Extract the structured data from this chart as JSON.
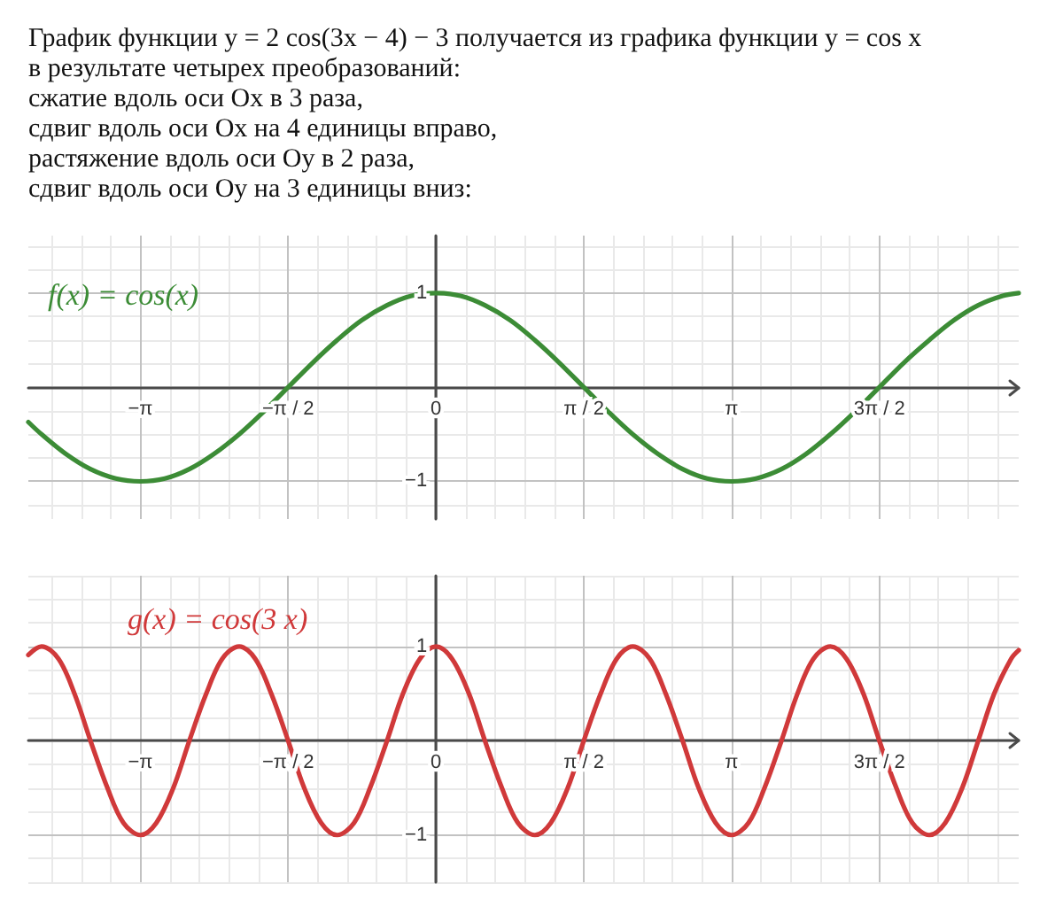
{
  "chart_data": [
    {
      "type": "line",
      "title": "График функции y = 2 cos(3x − 4) − 3 получается из графика функции y = cos x в результате четырех преобразований:",
      "annotations": [
        "сжатие вдоль оси Ox в 3 раза,",
        "сдвиг вдоль оси Ox на 4 единицы вправо,",
        "растяжение вдоль оси Oy в 2 раза,",
        "сдвиг вдоль оси Oy на 3 единицы вниз:"
      ],
      "xlim": [
        -4.33,
        6.19
      ],
      "xticks": [
        {
          "value": -3.14,
          "label": "−π"
        },
        {
          "value": -1.57,
          "label": "−π / 2"
        },
        0,
        {
          "value": 1.57,
          "label": "π / 2"
        },
        {
          "value": 3.14,
          "label": "π"
        },
        {
          "value": 4.71,
          "label": "3π / 2"
        }
      ],
      "ylim": [
        -1.4,
        1.61
      ],
      "yticks": [
        {
          "value": -1,
          "label": "−1"
        },
        1
      ],
      "grid": true,
      "legend": "top left",
      "marker": "none",
      "line_style": "solid",
      "series": [
        {
          "name": "f(x) = cos(x)",
          "color": "#3c8c36",
          "x": [
            -4.33,
            -4.19,
            -3.93,
            -3.67,
            -3.4,
            -3.14,
            -2.88,
            -2.62,
            -2.36,
            -2.09,
            -1.83,
            -1.57,
            -1.31,
            -1.05,
            -0.79,
            -0.52,
            -0.26,
            0,
            0.26,
            0.52,
            0.79,
            1.05,
            1.31,
            1.57,
            1.83,
            2.09,
            2.36,
            2.62,
            2.88,
            3.14,
            3.4,
            3.67,
            3.93,
            4.19,
            4.45,
            4.71,
            4.97,
            5.24,
            5.5,
            5.76,
            6.02,
            6.19
          ],
          "values": [
            -0.37,
            -0.5,
            -0.71,
            -0.87,
            -0.97,
            -1,
            -0.97,
            -0.87,
            -0.71,
            -0.5,
            -0.26,
            0,
            0.26,
            0.5,
            0.71,
            0.87,
            0.97,
            1,
            0.97,
            0.87,
            0.71,
            0.5,
            0.26,
            0,
            -0.26,
            -0.5,
            -0.71,
            -0.87,
            -0.97,
            -1,
            -0.97,
            -0.87,
            -0.71,
            -0.5,
            -0.26,
            0,
            0.26,
            0.5,
            0.71,
            0.87,
            0.97,
            1
          ]
        }
      ]
    },
    {
      "type": "line",
      "xlim": [
        -4.33,
        6.19
      ],
      "xticks": [
        {
          "value": -3.14,
          "label": "−π"
        },
        {
          "value": -1.57,
          "label": "−π / 2"
        },
        0,
        {
          "value": 1.57,
          "label": "π / 2"
        },
        {
          "value": 3.14,
          "label": "π"
        },
        {
          "value": 4.71,
          "label": "3π / 2"
        }
      ],
      "ylim": [
        -1.5,
        1.75
      ],
      "yticks": [
        {
          "value": -1,
          "label": "−1"
        },
        1
      ],
      "grid": true,
      "legend": "top left",
      "marker": "none",
      "line_style": "solid",
      "series": [
        {
          "name": "g(x) = cos(3 x)",
          "color": "#d0393a",
          "x": [
            -4.33,
            -4.19,
            -4.01,
            -3.84,
            -3.67,
            -3.49,
            -3.32,
            -3.14,
            -2.97,
            -2.79,
            -2.62,
            -2.44,
            -2.27,
            -2.09,
            -1.92,
            -1.75,
            -1.57,
            -1.4,
            -1.22,
            -1.05,
            -0.87,
            -0.7,
            -0.52,
            -0.35,
            -0.17,
            0,
            0.17,
            0.35,
            0.52,
            0.7,
            0.87,
            1.05,
            1.22,
            1.4,
            1.57,
            1.75,
            1.92,
            2.09,
            2.27,
            2.44,
            2.62,
            2.79,
            2.97,
            3.14,
            3.32,
            3.49,
            3.67,
            3.84,
            4.01,
            4.19,
            4.36,
            4.54,
            4.71,
            4.89,
            5.06,
            5.24,
            5.41,
            5.59,
            5.76,
            5.93,
            6.11,
            6.19
          ],
          "values": [
            0.91,
            1,
            0.87,
            0.5,
            0,
            -0.5,
            -0.87,
            -1,
            -0.87,
            -0.5,
            0,
            0.5,
            0.87,
            1,
            0.87,
            0.5,
            0,
            -0.5,
            -0.87,
            -1,
            -0.87,
            -0.5,
            0,
            0.5,
            0.87,
            1,
            0.87,
            0.5,
            0,
            -0.5,
            -0.87,
            -1,
            -0.87,
            -0.5,
            0,
            0.5,
            0.87,
            1,
            0.87,
            0.5,
            0,
            -0.5,
            -0.87,
            -1,
            -0.87,
            -0.5,
            0,
            0.5,
            0.87,
            1,
            0.87,
            0.5,
            0,
            -0.5,
            -0.87,
            -1,
            -0.87,
            -0.5,
            0,
            0.5,
            0.87,
            0.96
          ]
        }
      ]
    }
  ]
}
